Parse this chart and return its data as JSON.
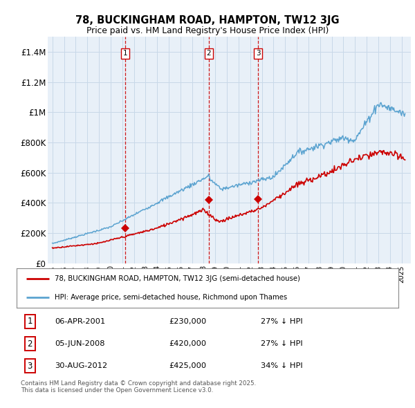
{
  "title": "78, BUCKINGHAM ROAD, HAMPTON, TW12 3JG",
  "subtitle": "Price paid vs. HM Land Registry's House Price Index (HPI)",
  "hpi_label": "HPI: Average price, semi-detached house, Richmond upon Thames",
  "price_label": "78, BUCKINGHAM ROAD, HAMPTON, TW12 3JG (semi-detached house)",
  "legend_text": "Contains HM Land Registry data © Crown copyright and database right 2025.\nThis data is licensed under the Open Government Licence v3.0.",
  "transactions": [
    {
      "num": 1,
      "date": "06-APR-2001",
      "price": "£230,000",
      "hpi": "27% ↓ HPI",
      "year": 2001.27
    },
    {
      "num": 2,
      "date": "05-JUN-2008",
      "price": "£420,000",
      "hpi": "27% ↓ HPI",
      "year": 2008.43
    },
    {
      "num": 3,
      "date": "30-AUG-2012",
      "price": "£425,000",
      "hpi": "34% ↓ HPI",
      "year": 2012.67
    }
  ],
  "transaction_prices": [
    230000,
    420000,
    425000
  ],
  "hpi_color": "#5ba3d0",
  "price_color": "#cc0000",
  "vline_color": "#cc0000",
  "grid_color": "#c8d8e8",
  "chart_bg": "#e8f0f8",
  "background_color": "#ffffff",
  "ylim": [
    0,
    1500000
  ],
  "yticks": [
    0,
    200000,
    400000,
    600000,
    800000,
    1000000,
    1200000,
    1400000
  ],
  "ytick_labels": [
    "£0",
    "£200K",
    "£400K",
    "£600K",
    "£800K",
    "£1M",
    "£1.2M",
    "£1.4M"
  ]
}
